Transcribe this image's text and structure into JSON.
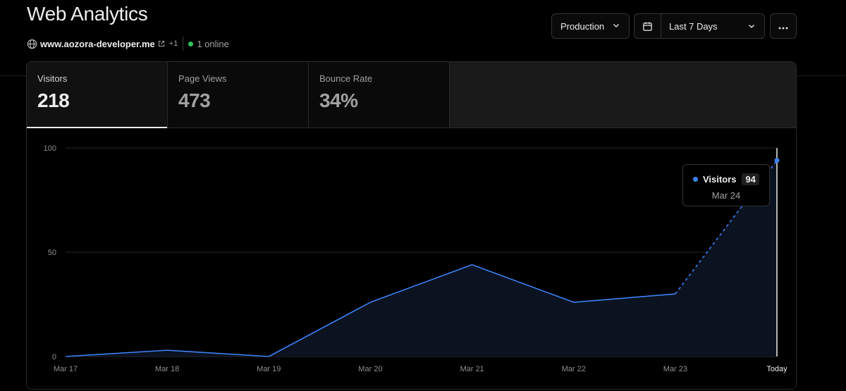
{
  "header": {
    "title": "Web Analytics",
    "domain": "www.aozora-developer.me",
    "extra_domains": "+1",
    "online": "1 online"
  },
  "controls": {
    "environment": "Production",
    "range": "Last 7 Days"
  },
  "icons": {
    "globe": "globe-icon",
    "external": "external-link-icon",
    "env_chevron": "chevron-down-icon",
    "calendar": "calendar-icon",
    "range_chevron": "chevron-down-icon",
    "more": "more-horizontal-icon"
  },
  "metrics": [
    {
      "label": "Visitors",
      "value": "218",
      "active": true
    },
    {
      "label": "Page Views",
      "value": "473",
      "active": false
    },
    {
      "label": "Bounce Rate",
      "value": "34%",
      "active": false
    }
  ],
  "tooltip": {
    "series": "Visitors",
    "value": "94",
    "date": "Mar 24"
  },
  "colors": {
    "line": "#3b82f6",
    "area": "#0b1220",
    "online": "#2ec45b"
  },
  "chart_data": {
    "type": "area",
    "categories": [
      "Mar 17",
      "Mar 18",
      "Mar 19",
      "Mar 20",
      "Mar 21",
      "Mar 22",
      "Mar 23",
      "Today"
    ],
    "series": [
      {
        "name": "Visitors",
        "values": [
          0,
          3,
          0,
          26,
          44,
          26,
          30,
          94
        ]
      }
    ],
    "ylim": [
      0,
      100
    ],
    "yticks": [
      0,
      50,
      100
    ],
    "grid": true,
    "dashed_last_segment": true,
    "highlighted_index": 7
  }
}
